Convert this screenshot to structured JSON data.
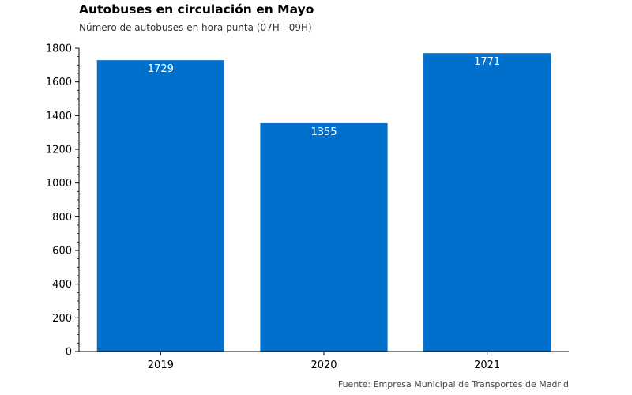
{
  "chart_data": {
    "type": "bar",
    "title": "Autobuses en circulación en Mayo",
    "subtitle": "Número de autobuses en hora punta (07H - 09H)",
    "source": "Fuente: Empresa Municipal de Transportes de Madrid",
    "categories": [
      "2019",
      "2020",
      "2021"
    ],
    "values": [
      1729,
      1355,
      1771
    ],
    "data_labels": [
      "1729",
      "1355",
      "1771"
    ],
    "ylim": [
      0,
      1800
    ],
    "yticks": [
      0,
      200,
      400,
      600,
      800,
      1000,
      1200,
      1400,
      1600,
      1800
    ],
    "xlabel": "",
    "ylabel": "",
    "grid": false,
    "bar_color": "#0070cc",
    "label_color": "#ffffff"
  }
}
